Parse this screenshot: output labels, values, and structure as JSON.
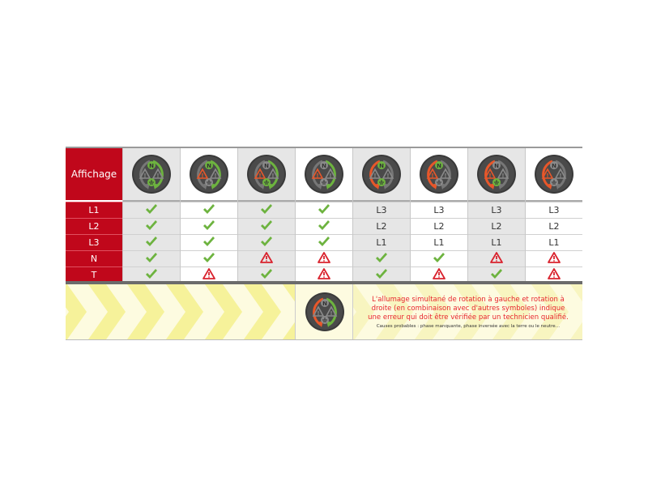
{
  "header_label": "Affichage",
  "row_labels": [
    "L1",
    "L2",
    "L3",
    "N",
    "T"
  ],
  "colors": {
    "red": "#c0071b",
    "green": "#6db33f",
    "orange": "#e8572a",
    "gray": "#8a8a8a",
    "warning": "#d9232e"
  },
  "columns": [
    {
      "rotation": "right",
      "n": "green",
      "left_warning": "gray",
      "earth": "green",
      "cells": [
        "check",
        "check",
        "check",
        "check",
        "check"
      ]
    },
    {
      "rotation": "right",
      "n": "green",
      "left_warning": "orange",
      "earth": "gray",
      "cells": [
        "check",
        "check",
        "check",
        "check",
        "warning"
      ]
    },
    {
      "rotation": "right",
      "n": "gray",
      "left_warning": "orange",
      "earth": "green",
      "cells": [
        "check",
        "check",
        "check",
        "warning",
        "check"
      ]
    },
    {
      "rotation": "right",
      "n": "gray",
      "left_warning": "orange",
      "earth": "gray",
      "cells": [
        "check",
        "check",
        "check",
        "warning",
        "warning"
      ]
    },
    {
      "rotation": "left",
      "n": "green",
      "left_warning": "gray",
      "earth": "green",
      "cells": [
        "L3",
        "L2",
        "L1",
        "check",
        "check"
      ]
    },
    {
      "rotation": "left",
      "n": "green",
      "left_warning": "orange",
      "earth": "gray",
      "cells": [
        "L3",
        "L2",
        "L1",
        "check",
        "warning"
      ]
    },
    {
      "rotation": "left",
      "n": "gray",
      "left_warning": "orange",
      "earth": "green",
      "cells": [
        "L3",
        "L2",
        "L1",
        "warning",
        "check"
      ]
    },
    {
      "rotation": "left",
      "n": "gray",
      "left_warning": "orange",
      "earth": "gray",
      "cells": [
        "L3",
        "L2",
        "L1",
        "warning",
        "warning"
      ]
    }
  ],
  "bottom": {
    "icon": {
      "rotation": "both",
      "n": "gray",
      "left_warning": "gray",
      "earth": "gray"
    },
    "message": "L'allumage simultané de rotation à gauche et rotation à droite (en combinaison avec d'autres symboles) indique une erreur qui doit être vérifiée par un technicien qualifié.",
    "causes": "Causes probables : phase manquante, phase inversée avec la terre ou le neutre…"
  }
}
